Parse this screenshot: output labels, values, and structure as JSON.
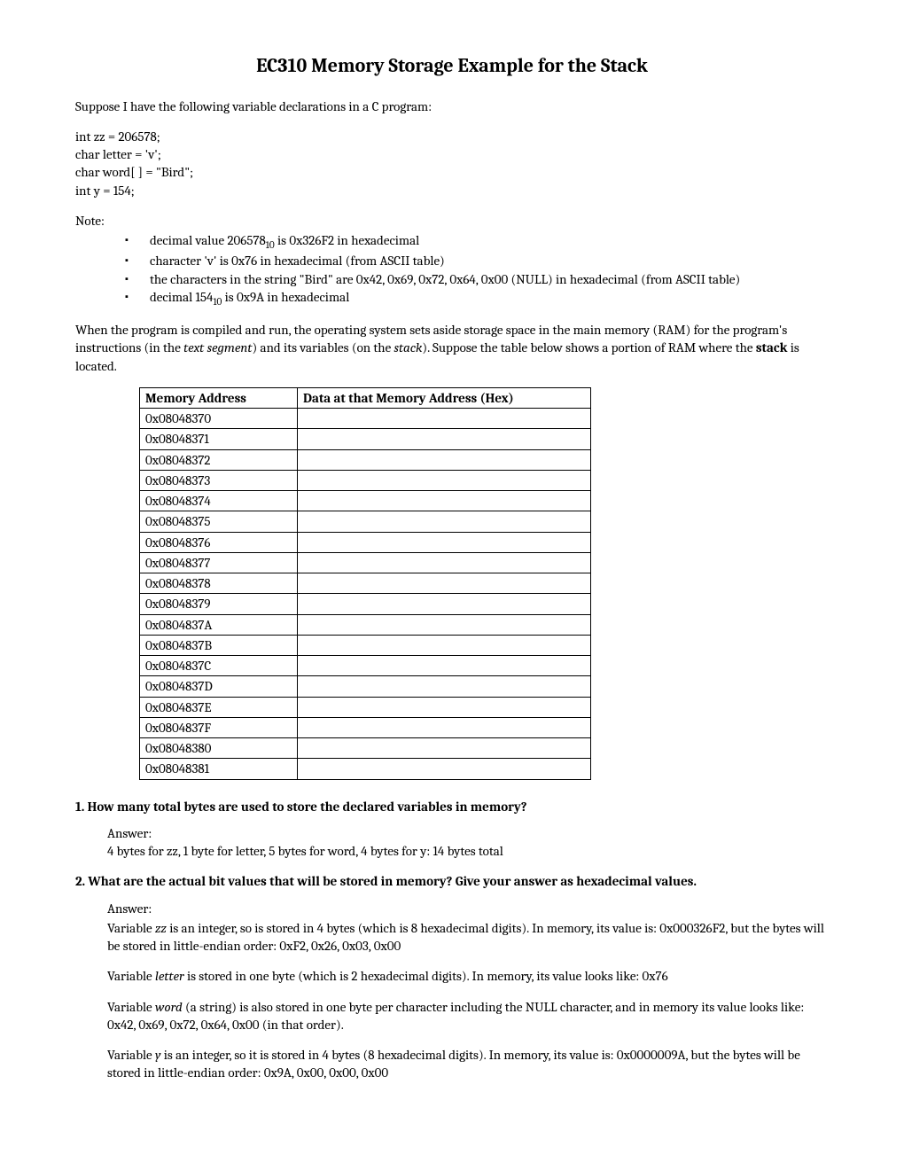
{
  "title": "EC310 Memory Storage Example for the Stack",
  "intro": "Suppose I have the following variable declarations in a C program:",
  "code": {
    "l1": "int  zz = 206578;",
    "l2": "char letter = 'v';",
    "l3": "char word[ ] = \"Bird\";",
    "l4": "int  y = 154;"
  },
  "note_label": "Note:",
  "notes": {
    "n1a": "decimal value 206578",
    "n1b": " is 0x326F2 in hexadecimal",
    "n2": "character 'v' is 0x76 in hexadecimal (from ASCII table)",
    "n3": "the characters in the string \"Bird\" are 0x42, 0x69, 0x72, 0x64, 0x00 (NULL) in hexadecimal (from ASCII table)",
    "n4a": "decimal 154",
    "n4b": " is 0x9A in hexadecimal",
    "sub10": "10"
  },
  "para2a": "When the program is compiled and run, the operating system sets aside storage space in the main memory (RAM) for the program's instructions (in the ",
  "para2b": "text segment",
  "para2c": ") and its variables (on the ",
  "para2d": "stack",
  "para2e": "). Suppose the table below shows a portion of RAM where the ",
  "para2f": "stack",
  "para2g": " is located.",
  "table": {
    "h1": "Memory Address",
    "h2": "Data at that Memory Address (Hex)",
    "addresses": [
      "0x08048370",
      "0x08048371",
      "0x08048372",
      "0x08048373",
      "0x08048374",
      "0x08048375",
      "0x08048376",
      "0x08048377",
      "0x08048378",
      "0x08048379",
      "0x0804837A",
      "0x0804837B",
      "0x0804837C",
      "0x0804837D",
      "0x0804837E",
      "0x0804837F",
      "0x08048380",
      "0x08048381"
    ]
  },
  "q1": {
    "text": "1.  How many total bytes are used to store the declared variables in memory?",
    "ans_label": "Answer:",
    "ans": " 4 bytes for zz, 1 byte for letter, 5 bytes for word, 4 bytes for y: 14 bytes total"
  },
  "q2": {
    "text": "2.  What are the actual bit values that will be stored in memory? Give your answer as hexadecimal values.",
    "ans_label": "Answer:",
    "p1a": "Variable ",
    "p1b": "zz",
    "p1c": " is an integer, so is stored in 4 bytes (which is 8 hexadecimal digits). In memory, its value is: 0x000326F2, but the bytes will be stored in little-endian order: 0xF2, 0x26, 0x03, 0x00",
    "p2a": "Variable ",
    "p2b": "letter",
    "p2c": " is stored in one byte (which is 2 hexadecimal digits). In memory, its value looks like: 0x76",
    "p3a": "Variable ",
    "p3b": "word",
    "p3c": " (a string) is also stored in one byte per character including the NULL character, and in memory its value looks like: 0x42, 0x69, 0x72, 0x64, 0x00 (in that order).",
    "p4a": "Variable ",
    "p4b": "y",
    "p4c": " is an integer, so it is stored in 4 bytes (8 hexadecimal digits). In memory, its value is: 0x0000009A, but the bytes will be stored in little-endian order:  0x9A, 0x00, 0x00, 0x00"
  }
}
